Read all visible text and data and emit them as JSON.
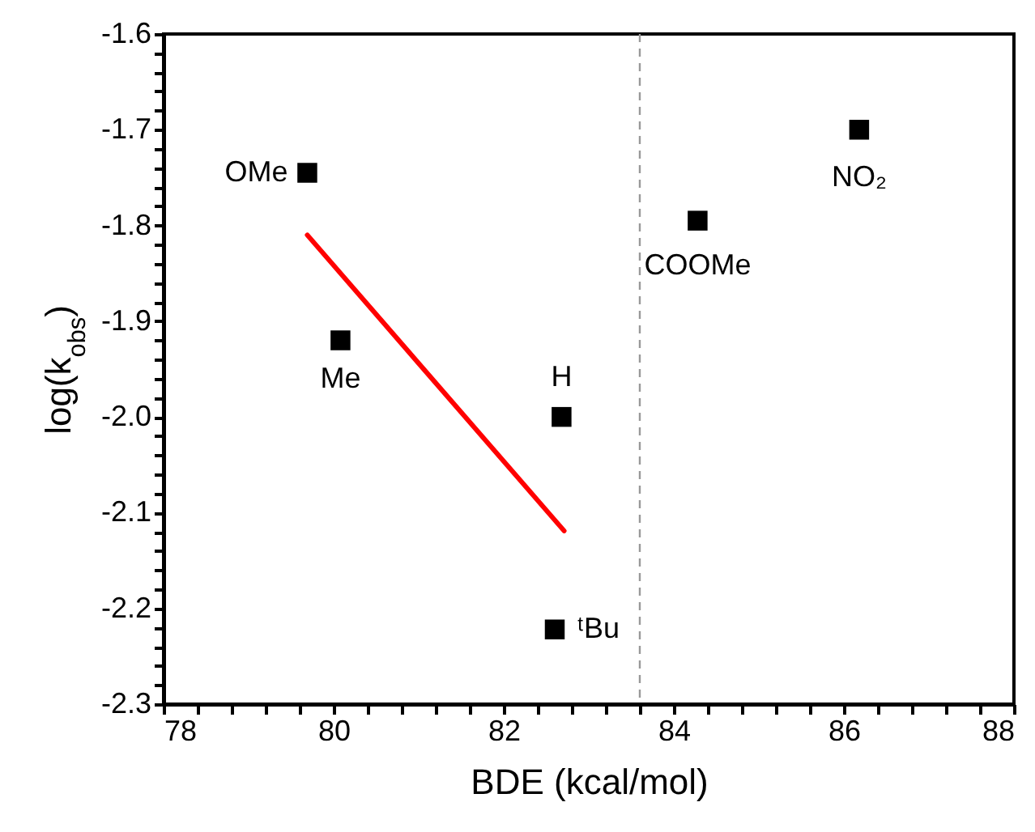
{
  "chart_data": {
    "type": "scatter",
    "xlabel": "BDE (kcal/mol)",
    "ylabel": "log(k$_{obs}$)",
    "x": [
      79.69,
      80.08,
      82.68,
      82.6,
      84.28,
      86.18
    ],
    "series": [
      {
        "color": "#000000",
        "marker": "square",
        "values": [
          -1.745,
          -1.92,
          -2.0,
          -2.222,
          -1.795,
          -1.7
        ]
      },
      {
        "type": "line",
        "color": "#ff0000",
        "line_style": "solid",
        "x": [
          79.69,
          82.71
        ],
        "values": [
          -1.81,
          -2.119
        ]
      }
    ],
    "annotations": [
      {
        "text": "OMe",
        "x": 79.69,
        "y": -1.745
      },
      {
        "text": "Me",
        "x": 80.08,
        "y": -1.92
      },
      {
        "text": "H",
        "x": 82.68,
        "y": -2.0
      },
      {
        "text": "ᵗBu",
        "x": 82.6,
        "y": -2.222
      },
      {
        "text": "COOMe",
        "x": 84.28,
        "y": -1.795
      },
      {
        "text": "NO₂",
        "x": 86.18,
        "y": -1.7
      }
    ],
    "ref_lines": [
      {
        "axis": "x",
        "value": 83.6,
        "color": "#999999",
        "line_style": "dashed"
      }
    ],
    "xlim": [
      78,
      88
    ],
    "ylim": [
      -2.3,
      -1.6
    ],
    "xticks": [
      78,
      {
        "value": 78.4,
        "label": null
      },
      {
        "value": 78.8,
        "label": null
      },
      {
        "value": 79.2,
        "label": null
      },
      {
        "value": 79.6,
        "label": null
      },
      80,
      {
        "value": 80.4,
        "label": null
      },
      {
        "value": 80.8,
        "label": null
      },
      {
        "value": 81.2,
        "label": null
      },
      {
        "value": 81.6,
        "label": null
      },
      82,
      {
        "value": 82.4,
        "label": null
      },
      {
        "value": 82.8,
        "label": null
      },
      {
        "value": 83.2,
        "label": null
      },
      {
        "value": 83.6,
        "label": null
      },
      84,
      {
        "value": 84.4,
        "label": null
      },
      {
        "value": 84.8,
        "label": null
      },
      {
        "value": 85.2,
        "label": null
      },
      {
        "value": 85.6,
        "label": null
      },
      86,
      {
        "value": 86.4,
        "label": null
      },
      {
        "value": 86.8,
        "label": null
      },
      {
        "value": 87.2,
        "label": null
      },
      {
        "value": 87.6,
        "label": null
      },
      88
    ],
    "yticks": [
      -2.3,
      {
        "value": -2.28,
        "label": null
      },
      {
        "value": -2.26,
        "label": null
      },
      {
        "value": -2.24,
        "label": null
      },
      {
        "value": -2.22,
        "label": null
      },
      -2.2,
      {
        "value": -2.18,
        "label": null
      },
      {
        "value": -2.16,
        "label": null
      },
      {
        "value": -2.14,
        "label": null
      },
      {
        "value": -2.12,
        "label": null
      },
      -2.1,
      {
        "value": -2.08,
        "label": null
      },
      {
        "value": -2.06,
        "label": null
      },
      {
        "value": -2.04,
        "label": null
      },
      {
        "value": -2.02,
        "label": null
      },
      {
        "value": -2,
        "label": "-2.0"
      },
      {
        "value": -1.98,
        "label": null
      },
      {
        "value": -1.96,
        "label": null
      },
      {
        "value": -1.94,
        "label": null
      },
      {
        "value": -1.92,
        "label": null
      },
      -1.9,
      {
        "value": -1.88,
        "label": null
      },
      {
        "value": -1.86,
        "label": null
      },
      {
        "value": -1.84,
        "label": null
      },
      {
        "value": -1.82,
        "label": null
      },
      -1.8,
      {
        "value": -1.78,
        "label": null
      },
      {
        "value": -1.76,
        "label": null
      },
      {
        "value": -1.74,
        "label": null
      },
      {
        "value": -1.72,
        "label": null
      },
      -1.7,
      {
        "value": -1.68,
        "label": null
      },
      {
        "value": -1.66,
        "label": null
      },
      {
        "value": -1.64,
        "label": null
      },
      {
        "value": -1.62,
        "label": null
      },
      -1.6
    ],
    "grid": false
  }
}
